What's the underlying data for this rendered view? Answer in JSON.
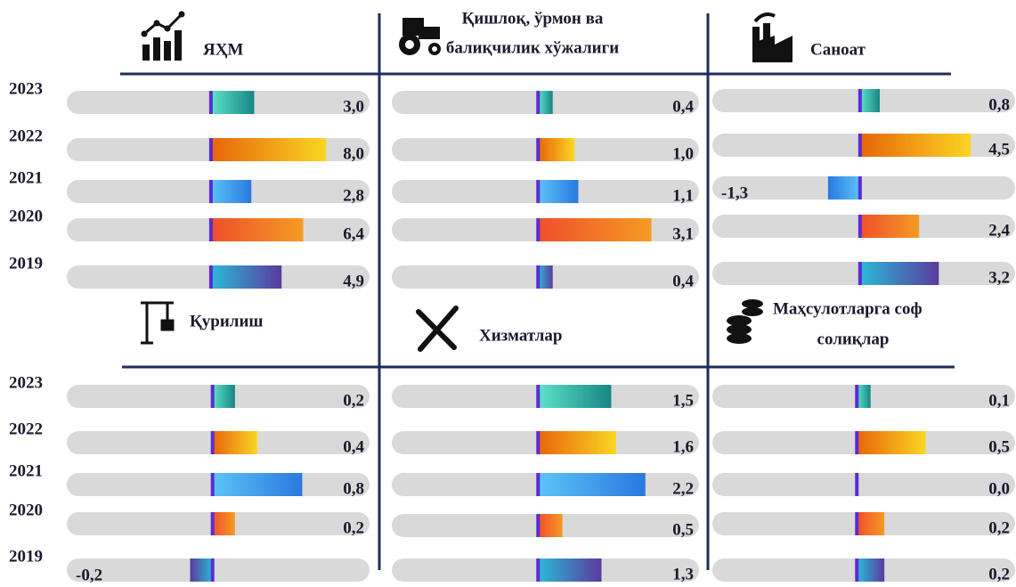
{
  "chart_data": [
    {
      "type": "hbar",
      "title": [
        "ЯҲМ"
      ],
      "categories": [
        "2023",
        "2022",
        "2021",
        "2020",
        "2019"
      ],
      "values": [
        3.0,
        8.0,
        2.8,
        6.4,
        4.9
      ],
      "value_labels": [
        "3,0",
        "8,0",
        "2,8",
        "6,4",
        "4,9"
      ],
      "xlim": [
        -10,
        11
      ],
      "colors": [
        "#5ee3c8",
        "#e8650a",
        "#5bc4f5",
        "#f04e2a",
        "#2bbad6"
      ],
      "colors_end": [
        "#168585",
        "#fad623",
        "#2a78e0",
        "#f59b23",
        "#5a3a9e"
      ]
    },
    {
      "type": "hbar",
      "title": [
        "Қишлоқ, ўрмон ва",
        "балиқчилик хўжалиги"
      ],
      "values": [
        0.4,
        1.0,
        1.1,
        3.1,
        0.4
      ],
      "value_labels": [
        "0,4",
        "1,0",
        "1,1",
        "3,1",
        "0,4"
      ],
      "xlim": [
        -4,
        4.4
      ],
      "colors": [
        "#5ee3c8",
        "#e8650a",
        "#5bc4f5",
        "#f04e2a",
        "#2bbad6"
      ],
      "colors_end": [
        "#168585",
        "#fad623",
        "#2a78e0",
        "#f59b23",
        "#5a3a9e"
      ]
    },
    {
      "type": "hbar",
      "title": [
        "Саноат"
      ],
      "values": [
        0.8,
        4.5,
        -1.3,
        2.4,
        3.2
      ],
      "value_labels": [
        "0,8",
        "4,5",
        "-1,3",
        "2,4",
        "3,2"
      ],
      "xlim": [
        -6,
        6.3
      ],
      "colors": [
        "#5ee3c8",
        "#e8650a",
        "#5bc4f5",
        "#f04e2a",
        "#2bbad6"
      ],
      "colors_end": [
        "#168585",
        "#fad623",
        "#2a78e0",
        "#f59b23",
        "#5a3a9e"
      ]
    },
    {
      "type": "hbar",
      "title": [
        "Қурилиш"
      ],
      "categories": [
        "2023",
        "2022",
        "2021",
        "2020",
        "2019"
      ],
      "values": [
        0.2,
        0.4,
        0.8,
        0.2,
        -0.2
      ],
      "value_labels": [
        "0,2",
        "0,4",
        "0,8",
        "0,2",
        "-0,2"
      ],
      "xlim": [
        -1.3,
        1.4
      ],
      "colors": [
        "#5ee3c8",
        "#e8650a",
        "#5bc4f5",
        "#f04e2a",
        "#2bbad6"
      ],
      "colors_end": [
        "#168585",
        "#fad623",
        "#2a78e0",
        "#f59b23",
        "#5a3a9e"
      ]
    },
    {
      "type": "hbar",
      "title": [
        "Хизматлар"
      ],
      "values": [
        1.5,
        1.6,
        2.2,
        0.5,
        1.3
      ],
      "value_labels": [
        "1,5",
        "1,6",
        "2,2",
        "0,5",
        "1,3"
      ],
      "xlim": [
        -3,
        3.3
      ],
      "colors": [
        "#5ee3c8",
        "#e8650a",
        "#5bc4f5",
        "#f04e2a",
        "#2bbad6"
      ],
      "colors_end": [
        "#168585",
        "#fad623",
        "#2a78e0",
        "#f59b23",
        "#5a3a9e"
      ]
    },
    {
      "type": "hbar",
      "title": [
        "Маҳсулотларга соф",
        "солиқлар"
      ],
      "values": [
        0.1,
        0.5,
        0.0,
        0.2,
        0.2
      ],
      "value_labels": [
        "0,1",
        "0,5",
        "0,0",
        "0,2",
        "0,2"
      ],
      "xlim": [
        -1.05,
        1.15
      ],
      "colors": [
        "#5ee3c8",
        "#e8650a",
        "#5bc4f5",
        "#f04e2a",
        "#2bbad6"
      ],
      "colors_end": [
        "#168585",
        "#fad623",
        "#2a78e0",
        "#f59b23",
        "#5a3a9e"
      ]
    }
  ]
}
